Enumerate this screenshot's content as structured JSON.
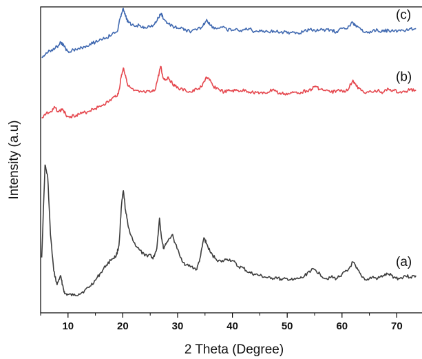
{
  "chart_data": {
    "type": "line",
    "title": "",
    "xlabel": "2 Theta (Degree)",
    "ylabel": "Intensity (a.u)",
    "xlim": [
      5,
      74
    ],
    "x_ticks": [
      "10",
      "20",
      "30",
      "40",
      "50",
      "60",
      "70"
    ],
    "y_ticks_shown": false,
    "grid": false,
    "series": [
      {
        "name": "(a)",
        "color": "#3c3c3c",
        "points": [
          [
            5.2,
            0.27
          ],
          [
            5.8,
            0.88
          ],
          [
            6.3,
            0.8
          ],
          [
            6.8,
            0.42
          ],
          [
            7.4,
            0.18
          ],
          [
            8.0,
            0.09
          ],
          [
            8.6,
            0.15
          ],
          [
            9.0,
            0.09
          ],
          [
            9.4,
            0.03
          ],
          [
            10,
            0.025
          ],
          [
            11,
            0.02
          ],
          [
            12,
            0.03
          ],
          [
            13,
            0.05
          ],
          [
            14,
            0.08
          ],
          [
            15,
            0.12
          ],
          [
            16,
            0.17
          ],
          [
            17,
            0.22
          ],
          [
            18,
            0.26
          ],
          [
            18.8,
            0.28
          ],
          [
            19.3,
            0.35
          ],
          [
            19.8,
            0.63
          ],
          [
            20.1,
            0.71
          ],
          [
            20.5,
            0.58
          ],
          [
            21,
            0.47
          ],
          [
            22,
            0.37
          ],
          [
            23,
            0.32
          ],
          [
            24,
            0.28
          ],
          [
            25,
            0.29
          ],
          [
            25.5,
            0.26
          ],
          [
            26.2,
            0.33
          ],
          [
            26.7,
            0.53
          ],
          [
            27.0,
            0.42
          ],
          [
            27.4,
            0.33
          ],
          [
            28,
            0.37
          ],
          [
            29,
            0.42
          ],
          [
            29.6,
            0.36
          ],
          [
            30.5,
            0.27
          ],
          [
            31.5,
            0.22
          ],
          [
            32.5,
            0.21
          ],
          [
            33.5,
            0.19
          ],
          [
            34.2,
            0.28
          ],
          [
            34.8,
            0.4
          ],
          [
            35.3,
            0.36
          ],
          [
            36,
            0.3
          ],
          [
            37,
            0.26
          ],
          [
            38,
            0.24
          ],
          [
            39,
            0.26
          ],
          [
            40,
            0.25
          ],
          [
            41,
            0.21
          ],
          [
            42,
            0.2
          ],
          [
            43,
            0.17
          ],
          [
            44,
            0.16
          ],
          [
            45,
            0.15
          ],
          [
            46,
            0.14
          ],
          [
            47,
            0.13
          ],
          [
            48,
            0.14
          ],
          [
            49,
            0.12
          ],
          [
            50,
            0.13
          ],
          [
            51,
            0.12
          ],
          [
            52,
            0.13
          ],
          [
            53,
            0.14
          ],
          [
            54,
            0.18
          ],
          [
            55,
            0.19
          ],
          [
            56,
            0.16
          ],
          [
            57,
            0.13
          ],
          [
            58,
            0.14
          ],
          [
            59,
            0.13
          ],
          [
            60,
            0.16
          ],
          [
            61,
            0.18
          ],
          [
            62,
            0.24
          ],
          [
            62.6,
            0.2
          ],
          [
            63.5,
            0.15
          ],
          [
            64.5,
            0.12
          ],
          [
            65.5,
            0.14
          ],
          [
            66.5,
            0.13
          ],
          [
            67.5,
            0.15
          ],
          [
            68.5,
            0.16
          ],
          [
            69.5,
            0.14
          ],
          [
            70.5,
            0.13
          ],
          [
            71.5,
            0.15
          ],
          [
            72.5,
            0.14
          ],
          [
            73.5,
            0.15
          ]
        ]
      },
      {
        "name": "(b)",
        "color": "#e5474e",
        "points": [
          [
            5.2,
            1.19
          ],
          [
            6,
            1.22
          ],
          [
            7,
            1.23
          ],
          [
            7.6,
            1.26
          ],
          [
            8.3,
            1.23
          ],
          [
            9,
            1.25
          ],
          [
            9.6,
            1.21
          ],
          [
            10.5,
            1.2
          ],
          [
            11.5,
            1.21
          ],
          [
            12.5,
            1.22
          ],
          [
            13.5,
            1.23
          ],
          [
            14.5,
            1.25
          ],
          [
            15.5,
            1.26
          ],
          [
            16.5,
            1.28
          ],
          [
            17.5,
            1.3
          ],
          [
            18.5,
            1.33
          ],
          [
            19.2,
            1.35
          ],
          [
            19.7,
            1.46
          ],
          [
            20.1,
            1.52
          ],
          [
            20.5,
            1.47
          ],
          [
            21,
            1.4
          ],
          [
            22,
            1.37
          ],
          [
            23,
            1.36
          ],
          [
            24,
            1.36
          ],
          [
            25,
            1.36
          ],
          [
            25.8,
            1.37
          ],
          [
            26.4,
            1.45
          ],
          [
            26.9,
            1.53
          ],
          [
            27.3,
            1.46
          ],
          [
            27.8,
            1.44
          ],
          [
            28.3,
            1.46
          ],
          [
            28.8,
            1.43
          ],
          [
            29.5,
            1.4
          ],
          [
            30.5,
            1.38
          ],
          [
            31.5,
            1.37
          ],
          [
            32.5,
            1.36
          ],
          [
            33.5,
            1.38
          ],
          [
            34.5,
            1.4
          ],
          [
            35.2,
            1.46
          ],
          [
            35.8,
            1.44
          ],
          [
            36.5,
            1.4
          ],
          [
            37.5,
            1.38
          ],
          [
            38.5,
            1.36
          ],
          [
            39.5,
            1.37
          ],
          [
            40.5,
            1.37
          ],
          [
            41.5,
            1.37
          ],
          [
            42.5,
            1.37
          ],
          [
            43.5,
            1.36
          ],
          [
            44.5,
            1.36
          ],
          [
            45.5,
            1.35
          ],
          [
            46.5,
            1.36
          ],
          [
            47.5,
            1.38
          ],
          [
            48.5,
            1.35
          ],
          [
            49.5,
            1.35
          ],
          [
            50.5,
            1.35
          ],
          [
            51.5,
            1.36
          ],
          [
            52.5,
            1.36
          ],
          [
            53.5,
            1.37
          ],
          [
            54.5,
            1.38
          ],
          [
            55.2,
            1.4
          ],
          [
            56,
            1.38
          ],
          [
            57,
            1.37
          ],
          [
            58,
            1.36
          ],
          [
            59,
            1.37
          ],
          [
            60,
            1.37
          ],
          [
            61,
            1.37
          ],
          [
            62,
            1.44
          ],
          [
            62.6,
            1.4
          ],
          [
            63.5,
            1.37
          ],
          [
            64.5,
            1.36
          ],
          [
            65.5,
            1.36
          ],
          [
            66.5,
            1.37
          ],
          [
            67.5,
            1.36
          ],
          [
            68.5,
            1.38
          ],
          [
            69.5,
            1.37
          ],
          [
            70.5,
            1.36
          ],
          [
            71.5,
            1.36
          ],
          [
            72.5,
            1.38
          ],
          [
            73.5,
            1.37
          ]
        ]
      },
      {
        "name": "(c)",
        "color": "#3f68b0",
        "points": [
          [
            5.2,
            1.59
          ],
          [
            6,
            1.62
          ],
          [
            7,
            1.64
          ],
          [
            8,
            1.66
          ],
          [
            8.7,
            1.69
          ],
          [
            9.3,
            1.66
          ],
          [
            10,
            1.63
          ],
          [
            11,
            1.64
          ],
          [
            12,
            1.65
          ],
          [
            13,
            1.66
          ],
          [
            14,
            1.68
          ],
          [
            15,
            1.69
          ],
          [
            16,
            1.71
          ],
          [
            17,
            1.72
          ],
          [
            18,
            1.74
          ],
          [
            19,
            1.76
          ],
          [
            19.6,
            1.86
          ],
          [
            20.0,
            1.91
          ],
          [
            20.5,
            1.86
          ],
          [
            21,
            1.82
          ],
          [
            22,
            1.8
          ],
          [
            23,
            1.8
          ],
          [
            24,
            1.79
          ],
          [
            25,
            1.79
          ],
          [
            25.8,
            1.81
          ],
          [
            26.5,
            1.85
          ],
          [
            27.0,
            1.88
          ],
          [
            27.5,
            1.84
          ],
          [
            28.3,
            1.81
          ],
          [
            29.5,
            1.79
          ],
          [
            30.5,
            1.78
          ],
          [
            31.5,
            1.77
          ],
          [
            32.5,
            1.76
          ],
          [
            33.5,
            1.77
          ],
          [
            34.5,
            1.79
          ],
          [
            35.3,
            1.84
          ],
          [
            36,
            1.8
          ],
          [
            37,
            1.78
          ],
          [
            38,
            1.79
          ],
          [
            39,
            1.77
          ],
          [
            40,
            1.77
          ],
          [
            41,
            1.77
          ],
          [
            42,
            1.77
          ],
          [
            43,
            1.78
          ],
          [
            44,
            1.76
          ],
          [
            45,
            1.77
          ],
          [
            46,
            1.76
          ],
          [
            47,
            1.76
          ],
          [
            48,
            1.76
          ],
          [
            49,
            1.76
          ],
          [
            50,
            1.75
          ],
          [
            51,
            1.76
          ],
          [
            52,
            1.75
          ],
          [
            53,
            1.76
          ],
          [
            54,
            1.77
          ],
          [
            55,
            1.77
          ],
          [
            56,
            1.77
          ],
          [
            57,
            1.77
          ],
          [
            58,
            1.77
          ],
          [
            59,
            1.76
          ],
          [
            60,
            1.78
          ],
          [
            61,
            1.78
          ],
          [
            62,
            1.82
          ],
          [
            62.6,
            1.79
          ],
          [
            63.5,
            1.77
          ],
          [
            64.5,
            1.76
          ],
          [
            65.5,
            1.76
          ],
          [
            66.5,
            1.77
          ],
          [
            67.5,
            1.76
          ],
          [
            68.5,
            1.77
          ],
          [
            69.5,
            1.76
          ],
          [
            70.5,
            1.77
          ],
          [
            71.5,
            1.76
          ],
          [
            72.5,
            1.78
          ],
          [
            73.5,
            1.78
          ]
        ]
      }
    ]
  }
}
